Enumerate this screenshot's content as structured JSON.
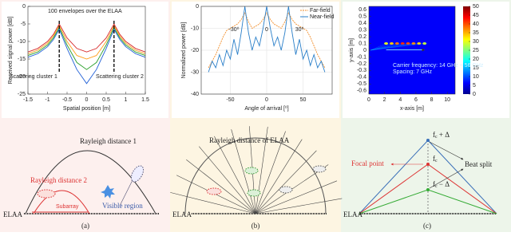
{
  "chart_data": [
    {
      "type": "line",
      "xlabel": "Spatial position [m]",
      "ylabel": "Received signal power [dB]",
      "annotations": [
        "100 envelopes over the ELAA",
        "Scattering cluster 1",
        "Scattering cluster 2"
      ],
      "x": [
        -1.5,
        -1.25,
        -1,
        -0.85,
        -0.7,
        -0.5,
        -0.25,
        0,
        0.25,
        0.5,
        0.7,
        0.85,
        1,
        1.25,
        1.5
      ],
      "series": [
        {
          "color": "#d62728",
          "values": [
            -13,
            -12,
            -10,
            -8,
            -5,
            -9,
            -12,
            -13,
            -12,
            -9,
            -5,
            -8,
            -10,
            -12,
            -13
          ]
        },
        {
          "color": "#ff9f1a",
          "values": [
            -13.5,
            -12.5,
            -10.5,
            -8.5,
            -5.5,
            -10,
            -14,
            -15,
            -14,
            -10,
            -5.5,
            -8.5,
            -10.5,
            -12.5,
            -13.5
          ]
        },
        {
          "color": "#2ca02c",
          "values": [
            -14,
            -13,
            -11,
            -9,
            -6,
            -11,
            -16,
            -18,
            -16,
            -11,
            -6,
            -9,
            -11,
            -13,
            -14
          ]
        },
        {
          "color": "#1f5fd6",
          "values": [
            -14.5,
            -13.5,
            -11.5,
            -9.5,
            -6.5,
            -12,
            -18,
            -22,
            -18,
            -12,
            -6.5,
            -9.5,
            -11.5,
            -13.5,
            -14.5
          ]
        }
      ],
      "xlim": [
        -1.5,
        1.5
      ],
      "xticks": [
        -1.5,
        -1,
        -0.5,
        0,
        0.5,
        1,
        1.5
      ],
      "ylim": [
        -25,
        0
      ],
      "yticks": [
        -25,
        -20,
        -15,
        -10,
        -5,
        0
      ],
      "grid": false
    },
    {
      "type": "line",
      "xlabel": "Angle of arrival [⁰]",
      "ylabel": "Normalized power [dB]",
      "annotations": [
        "-30⁰",
        "0",
        "30⁰"
      ],
      "legend": "upper right",
      "x": [
        -80,
        -75,
        -70,
        -65,
        -60,
        -55,
        -50,
        -45,
        -40,
        -35,
        -30,
        -25,
        -20,
        -15,
        -10,
        -5,
        0,
        5,
        10,
        15,
        20,
        25,
        30,
        35,
        40,
        45,
        50,
        55,
        60,
        65,
        70,
        75,
        80
      ],
      "series": [
        {
          "name": "Far-field",
          "color": "#f28e2b",
          "dashed": true,
          "values": [
            -28,
            -25,
            -22,
            -18,
            -14,
            -11,
            -10,
            -9,
            -8,
            -6,
            -3,
            -7,
            -10,
            -9,
            -8,
            -6,
            -3,
            -6,
            -8,
            -9,
            -10,
            -7,
            -3,
            -6,
            -8,
            -9,
            -10,
            -11,
            -14,
            -18,
            -22,
            -25,
            -28
          ]
        },
        {
          "name": "Near-field",
          "color": "#2a7fc9",
          "dashed": false,
          "values": [
            -30,
            -25,
            -28,
            -22,
            -27,
            -20,
            -24,
            -15,
            -22,
            -12,
            0,
            -12,
            -20,
            -14,
            -18,
            -10,
            0,
            -10,
            -18,
            -14,
            -20,
            -12,
            0,
            -12,
            -22,
            -15,
            -24,
            -20,
            -27,
            -22,
            -28,
            -25,
            -30
          ]
        }
      ],
      "xlim": [
        -90,
        90
      ],
      "xticks": [
        -50,
        0,
        50
      ],
      "ylim": [
        -40,
        0
      ],
      "yticks": [
        -40,
        -30,
        -20,
        -10,
        0
      ],
      "grid": true
    },
    {
      "type": "heatmap",
      "xlabel": "x-axis [m]",
      "ylabel": "y-axis [m]",
      "annotations": [
        "Carrier frequency: 14 GHz ~ 56 GHz",
        "Spacing: 7 GHz"
      ],
      "x": [
        2.2,
        2.9,
        3.6,
        4.3,
        5.0,
        5.7,
        6.4,
        7.1
      ],
      "y": [
        0.1,
        0.1,
        0.1,
        0.1,
        0.1,
        0.1,
        0.1,
        0.1
      ],
      "values": [
        30,
        34,
        38,
        42,
        40,
        37,
        33,
        28
      ],
      "xlim": [
        0,
        11
      ],
      "xticks": [
        0,
        2,
        4,
        6,
        8,
        10
      ],
      "ylim": [
        -0.65,
        0.65
      ],
      "yticks": [
        -0.6,
        -0.5,
        -0.4,
        -0.3,
        -0.2,
        -0.1,
        0,
        0.1,
        0.2,
        0.3,
        0.4,
        0.5,
        0.6
      ],
      "clim": [
        0,
        50
      ],
      "cticks": [
        0,
        5,
        10,
        15,
        20,
        25,
        30,
        35,
        40,
        45,
        50
      ]
    }
  ],
  "diagrams": [
    {
      "labels": [
        "Rayleigh distance 1",
        "Rayleigh distance 2",
        "Subarray",
        "Visible region",
        "ELAA"
      ],
      "caption": "(a)"
    },
    {
      "labels": [
        "Rayleigh distance of ELAA",
        "ELAA"
      ],
      "caption": "(b)"
    },
    {
      "labels": [
        "Focal point",
        "Beat split",
        "ELAA"
      ],
      "freqs": [
        {
          "base": "f",
          "sub": "c",
          "rest": " + Δ"
        },
        {
          "base": "f",
          "sub": "c",
          "rest": ""
        },
        {
          "base": "f",
          "sub": "c",
          "rest": " − Δ"
        }
      ],
      "caption": "(c)"
    }
  ]
}
